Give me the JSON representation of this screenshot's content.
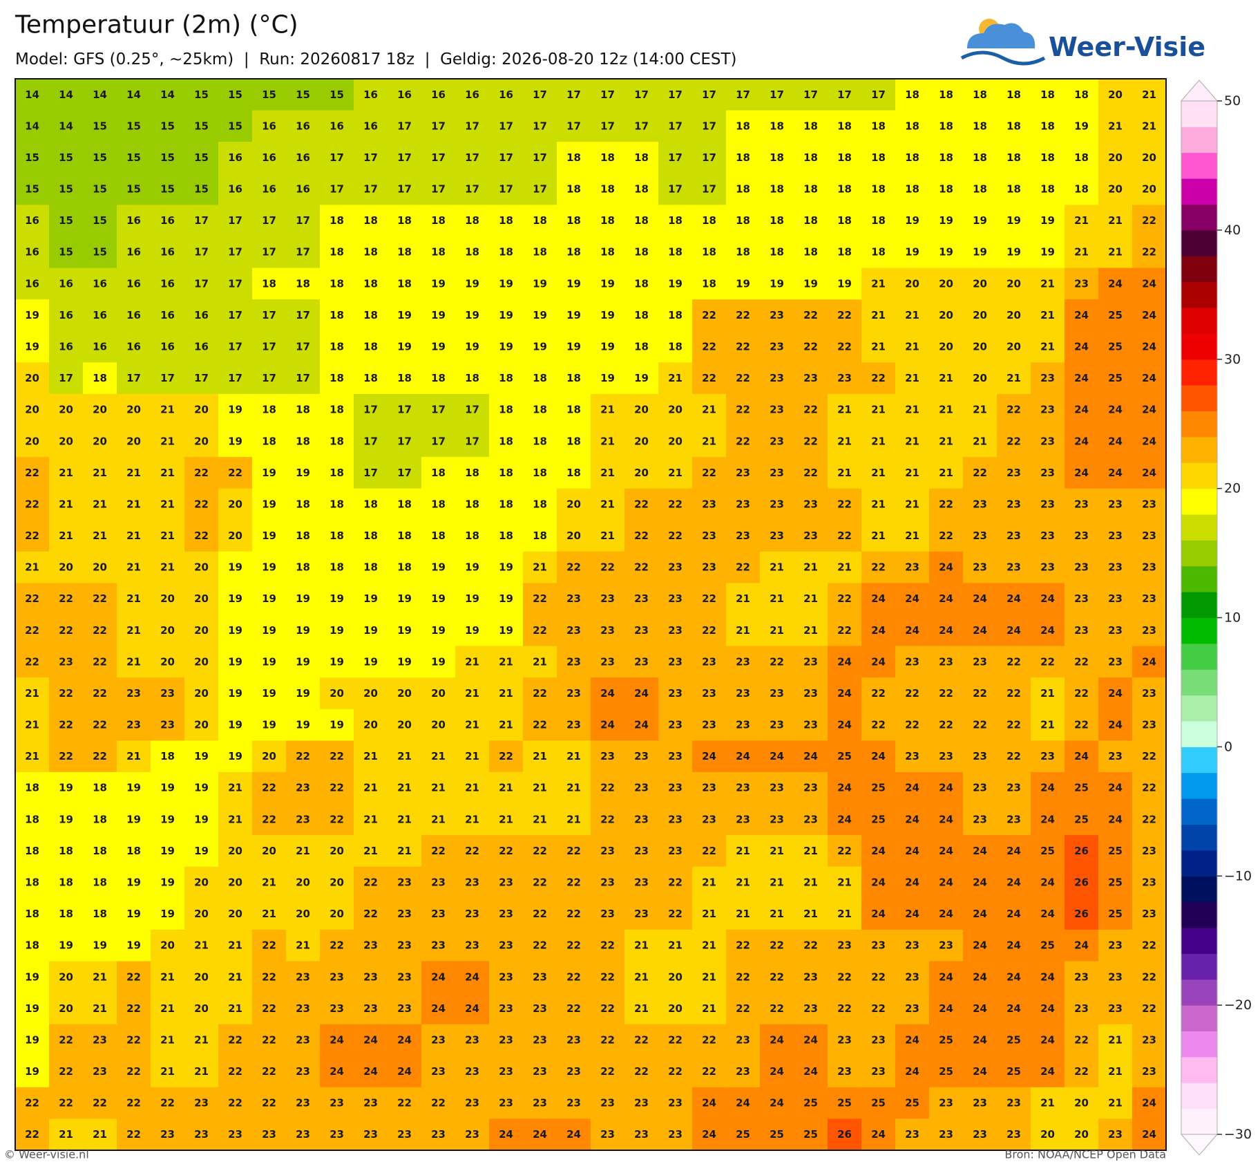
{
  "header": {
    "title": "Temperatuur (2m) (°C)",
    "subtitle": "Model: GFS (0.25°, ~25km)  |  Run: 20260817 18z  |  Geldig: 2026-08-20 12z (14:00 CEST)",
    "logo": "Weer-Visie"
  },
  "map": {
    "values": [
      [
        14,
        14,
        14,
        14,
        14,
        15,
        15,
        15,
        15,
        15,
        16,
        16,
        16,
        16,
        16,
        17,
        17,
        17,
        17,
        17,
        17,
        17,
        17,
        17,
        17,
        17,
        18,
        18,
        18,
        18,
        18,
        18,
        20,
        21
      ],
      [
        14,
        14,
        15,
        15,
        15,
        15,
        15,
        16,
        16,
        16,
        16,
        17,
        17,
        17,
        17,
        17,
        17,
        17,
        17,
        17,
        17,
        18,
        18,
        18,
        18,
        18,
        18,
        18,
        18,
        18,
        18,
        19,
        21,
        21
      ],
      [
        15,
        15,
        15,
        15,
        15,
        15,
        16,
        16,
        16,
        17,
        17,
        17,
        17,
        17,
        17,
        17,
        18,
        18,
        18,
        17,
        17,
        18,
        18,
        18,
        18,
        18,
        18,
        18,
        18,
        18,
        18,
        18,
        20,
        20
      ],
      [
        15,
        15,
        15,
        15,
        15,
        15,
        16,
        16,
        16,
        17,
        17,
        17,
        17,
        17,
        17,
        17,
        18,
        18,
        18,
        17,
        17,
        18,
        18,
        18,
        18,
        18,
        18,
        18,
        18,
        18,
        18,
        18,
        20,
        20
      ],
      [
        16,
        15,
        15,
        16,
        16,
        17,
        17,
        17,
        17,
        18,
        18,
        18,
        18,
        18,
        18,
        18,
        18,
        18,
        18,
        18,
        18,
        18,
        18,
        18,
        18,
        18,
        19,
        19,
        19,
        19,
        19,
        21,
        21,
        22
      ],
      [
        16,
        15,
        15,
        16,
        16,
        17,
        17,
        17,
        17,
        18,
        18,
        18,
        18,
        18,
        18,
        18,
        18,
        18,
        18,
        18,
        18,
        18,
        18,
        18,
        18,
        18,
        19,
        19,
        19,
        19,
        19,
        21,
        21,
        22
      ],
      [
        16,
        16,
        16,
        16,
        16,
        17,
        17,
        18,
        18,
        18,
        18,
        18,
        19,
        19,
        19,
        19,
        19,
        19,
        18,
        19,
        18,
        19,
        19,
        19,
        19,
        21,
        20,
        20,
        20,
        20,
        21,
        23,
        24,
        24
      ],
      [
        19,
        16,
        16,
        16,
        16,
        16,
        17,
        17,
        17,
        18,
        18,
        19,
        19,
        19,
        19,
        19,
        19,
        19,
        18,
        18,
        22,
        22,
        23,
        22,
        22,
        21,
        21,
        20,
        20,
        20,
        21,
        24,
        25,
        24
      ],
      [
        19,
        16,
        16,
        16,
        16,
        16,
        17,
        17,
        17,
        18,
        18,
        19,
        19,
        19,
        19,
        19,
        19,
        19,
        18,
        18,
        22,
        22,
        23,
        22,
        22,
        21,
        21,
        20,
        20,
        20,
        21,
        24,
        25,
        24
      ],
      [
        20,
        17,
        18,
        17,
        17,
        17,
        17,
        17,
        17,
        18,
        18,
        18,
        18,
        18,
        18,
        18,
        18,
        19,
        19,
        21,
        22,
        22,
        23,
        23,
        23,
        22,
        21,
        21,
        20,
        21,
        23,
        24,
        25,
        24
      ],
      [
        20,
        20,
        20,
        20,
        21,
        20,
        19,
        18,
        18,
        18,
        17,
        17,
        17,
        17,
        18,
        18,
        18,
        21,
        20,
        20,
        21,
        22,
        23,
        22,
        21,
        21,
        21,
        21,
        21,
        22,
        23,
        24,
        24,
        24
      ],
      [
        20,
        20,
        20,
        20,
        21,
        20,
        19,
        18,
        18,
        18,
        17,
        17,
        17,
        17,
        18,
        18,
        18,
        21,
        20,
        20,
        21,
        22,
        23,
        22,
        21,
        21,
        21,
        21,
        21,
        22,
        23,
        24,
        24,
        24
      ],
      [
        22,
        21,
        21,
        21,
        21,
        22,
        22,
        19,
        19,
        18,
        17,
        17,
        18,
        18,
        18,
        18,
        18,
        21,
        20,
        21,
        22,
        23,
        23,
        22,
        21,
        21,
        21,
        21,
        22,
        23,
        23,
        24,
        24,
        24
      ],
      [
        22,
        21,
        21,
        21,
        21,
        22,
        20,
        19,
        18,
        18,
        18,
        18,
        18,
        18,
        18,
        18,
        20,
        21,
        22,
        22,
        23,
        23,
        23,
        23,
        22,
        21,
        21,
        22,
        23,
        23,
        23,
        23,
        23,
        23
      ],
      [
        22,
        21,
        21,
        21,
        21,
        22,
        20,
        19,
        18,
        18,
        18,
        18,
        18,
        18,
        18,
        18,
        20,
        21,
        22,
        22,
        23,
        23,
        23,
        23,
        22,
        21,
        21,
        22,
        23,
        23,
        23,
        23,
        23,
        23
      ],
      [
        21,
        20,
        20,
        21,
        21,
        20,
        19,
        19,
        18,
        18,
        18,
        18,
        19,
        19,
        19,
        21,
        22,
        22,
        22,
        23,
        23,
        22,
        21,
        21,
        21,
        22,
        23,
        24,
        23,
        23,
        23,
        23,
        23,
        23
      ],
      [
        22,
        22,
        22,
        21,
        20,
        20,
        19,
        19,
        19,
        19,
        19,
        19,
        19,
        19,
        19,
        22,
        23,
        23,
        23,
        23,
        22,
        21,
        21,
        21,
        22,
        24,
        24,
        24,
        24,
        24,
        24,
        23,
        23,
        23
      ],
      [
        22,
        22,
        22,
        21,
        20,
        20,
        19,
        19,
        19,
        19,
        19,
        19,
        19,
        19,
        19,
        22,
        23,
        23,
        23,
        23,
        22,
        21,
        21,
        21,
        22,
        24,
        24,
        24,
        24,
        24,
        24,
        23,
        23,
        23
      ],
      [
        22,
        23,
        22,
        21,
        20,
        20,
        19,
        19,
        19,
        19,
        19,
        19,
        19,
        21,
        21,
        21,
        23,
        23,
        23,
        23,
        23,
        23,
        22,
        23,
        24,
        24,
        23,
        23,
        23,
        22,
        22,
        22,
        23,
        24
      ],
      [
        21,
        22,
        22,
        23,
        23,
        20,
        19,
        19,
        19,
        20,
        20,
        20,
        20,
        21,
        21,
        22,
        23,
        24,
        24,
        23,
        23,
        23,
        23,
        23,
        24,
        22,
        22,
        22,
        22,
        22,
        21,
        22,
        24,
        23
      ],
      [
        21,
        22,
        22,
        23,
        23,
        20,
        19,
        19,
        19,
        19,
        20,
        20,
        20,
        21,
        21,
        22,
        23,
        24,
        24,
        23,
        23,
        23,
        23,
        23,
        24,
        22,
        22,
        22,
        22,
        22,
        21,
        22,
        24,
        23
      ],
      [
        21,
        22,
        22,
        21,
        18,
        19,
        19,
        20,
        22,
        22,
        21,
        21,
        21,
        21,
        22,
        21,
        21,
        23,
        23,
        23,
        24,
        24,
        24,
        24,
        25,
        24,
        23,
        23,
        23,
        22,
        23,
        24,
        23,
        22
      ],
      [
        18,
        19,
        18,
        19,
        19,
        19,
        21,
        22,
        23,
        22,
        21,
        21,
        21,
        21,
        21,
        21,
        21,
        22,
        23,
        23,
        23,
        23,
        23,
        23,
        24,
        25,
        24,
        24,
        23,
        23,
        24,
        25,
        24,
        22
      ],
      [
        18,
        19,
        18,
        19,
        19,
        19,
        21,
        22,
        23,
        22,
        21,
        21,
        21,
        21,
        21,
        21,
        21,
        22,
        23,
        23,
        23,
        23,
        23,
        23,
        24,
        25,
        24,
        24,
        23,
        23,
        24,
        25,
        24,
        22
      ],
      [
        18,
        18,
        18,
        18,
        19,
        19,
        20,
        20,
        21,
        20,
        21,
        21,
        22,
        22,
        22,
        22,
        22,
        23,
        23,
        23,
        22,
        21,
        21,
        21,
        22,
        24,
        24,
        24,
        24,
        24,
        25,
        26,
        25,
        23
      ],
      [
        18,
        18,
        18,
        19,
        19,
        20,
        20,
        21,
        20,
        20,
        22,
        23,
        23,
        23,
        23,
        22,
        22,
        23,
        23,
        22,
        21,
        21,
        21,
        21,
        21,
        24,
        24,
        24,
        24,
        24,
        24,
        26,
        25,
        23
      ],
      [
        18,
        18,
        18,
        19,
        19,
        20,
        20,
        21,
        20,
        20,
        22,
        23,
        23,
        23,
        23,
        22,
        22,
        23,
        23,
        22,
        21,
        21,
        21,
        21,
        21,
        24,
        24,
        24,
        24,
        24,
        24,
        26,
        25,
        23
      ],
      [
        18,
        19,
        19,
        19,
        20,
        21,
        21,
        22,
        21,
        22,
        23,
        23,
        23,
        23,
        23,
        22,
        22,
        22,
        21,
        21,
        21,
        22,
        22,
        22,
        23,
        23,
        23,
        23,
        24,
        24,
        25,
        24,
        23,
        22
      ],
      [
        19,
        20,
        21,
        22,
        21,
        20,
        21,
        22,
        23,
        23,
        23,
        23,
        24,
        24,
        23,
        23,
        22,
        22,
        21,
        20,
        21,
        22,
        22,
        23,
        22,
        22,
        23,
        24,
        24,
        24,
        24,
        23,
        23,
        22
      ],
      [
        19,
        20,
        21,
        22,
        21,
        20,
        21,
        22,
        23,
        23,
        23,
        23,
        24,
        24,
        23,
        23,
        22,
        22,
        21,
        20,
        21,
        22,
        22,
        23,
        22,
        22,
        23,
        24,
        24,
        24,
        24,
        23,
        23,
        22
      ],
      [
        19,
        22,
        23,
        22,
        21,
        21,
        22,
        22,
        23,
        24,
        24,
        24,
        23,
        23,
        23,
        23,
        23,
        22,
        22,
        22,
        22,
        23,
        24,
        24,
        23,
        23,
        24,
        25,
        24,
        25,
        24,
        22,
        21,
        23
      ],
      [
        19,
        22,
        23,
        22,
        21,
        21,
        22,
        22,
        23,
        24,
        24,
        24,
        23,
        23,
        23,
        23,
        23,
        22,
        22,
        22,
        22,
        23,
        24,
        24,
        23,
        23,
        24,
        25,
        24,
        25,
        24,
        22,
        21,
        23
      ],
      [
        22,
        22,
        22,
        22,
        22,
        23,
        22,
        22,
        23,
        23,
        23,
        22,
        22,
        23,
        23,
        23,
        23,
        23,
        23,
        23,
        24,
        24,
        24,
        25,
        25,
        25,
        25,
        23,
        23,
        23,
        21,
        20,
        21,
        24
      ],
      [
        22,
        21,
        21,
        22,
        23,
        23,
        23,
        23,
        23,
        23,
        23,
        23,
        23,
        23,
        24,
        24,
        24,
        23,
        23,
        23,
        24,
        25,
        25,
        25,
        26,
        24,
        23,
        23,
        23,
        23,
        20,
        20,
        23,
        24
      ]
    ]
  },
  "colorbar": {
    "range": [
      -30,
      50
    ],
    "ticks": [
      50,
      40,
      30,
      20,
      10,
      0,
      {
        "value": -10,
        "label": "−10"
      },
      {
        "value": -20,
        "label": "−20"
      },
      {
        "value": -30,
        "label": "−30"
      }
    ],
    "colors": [
      "#fff0fc",
      "#ffe0fa",
      "#ffbbf0",
      "#ee88ee",
      "#cc66cc",
      "#9944bb",
      "#6622aa",
      "#440088",
      "#220055",
      "#001060",
      "#002288",
      "#0044aa",
      "#0066cc",
      "#0099ee",
      "#33ccff",
      "#ccffdd",
      "#aaeeaa",
      "#77dd77",
      "#44cc44",
      "#00bb00",
      "#009900",
      "#4cb800",
      "#99cc00",
      "#ccdd00",
      "#ffff00",
      "#ffd700",
      "#ffb300",
      "#ff8800",
      "#ff5500",
      "#ff2200",
      "#ee0000",
      "#dd0000",
      "#aa0000",
      "#800010",
      "#4d0033",
      "#880066",
      "#cc00aa",
      "#ff55d0",
      "#ffaadd",
      "#ffe0f5"
    ],
    "extend_colors": [
      "#fff8fe",
      "#ffeefa"
    ]
  },
  "footer": {
    "left": "© Weer-visie.nl",
    "right": "Bron: NOAA/NCEP Open Data"
  }
}
